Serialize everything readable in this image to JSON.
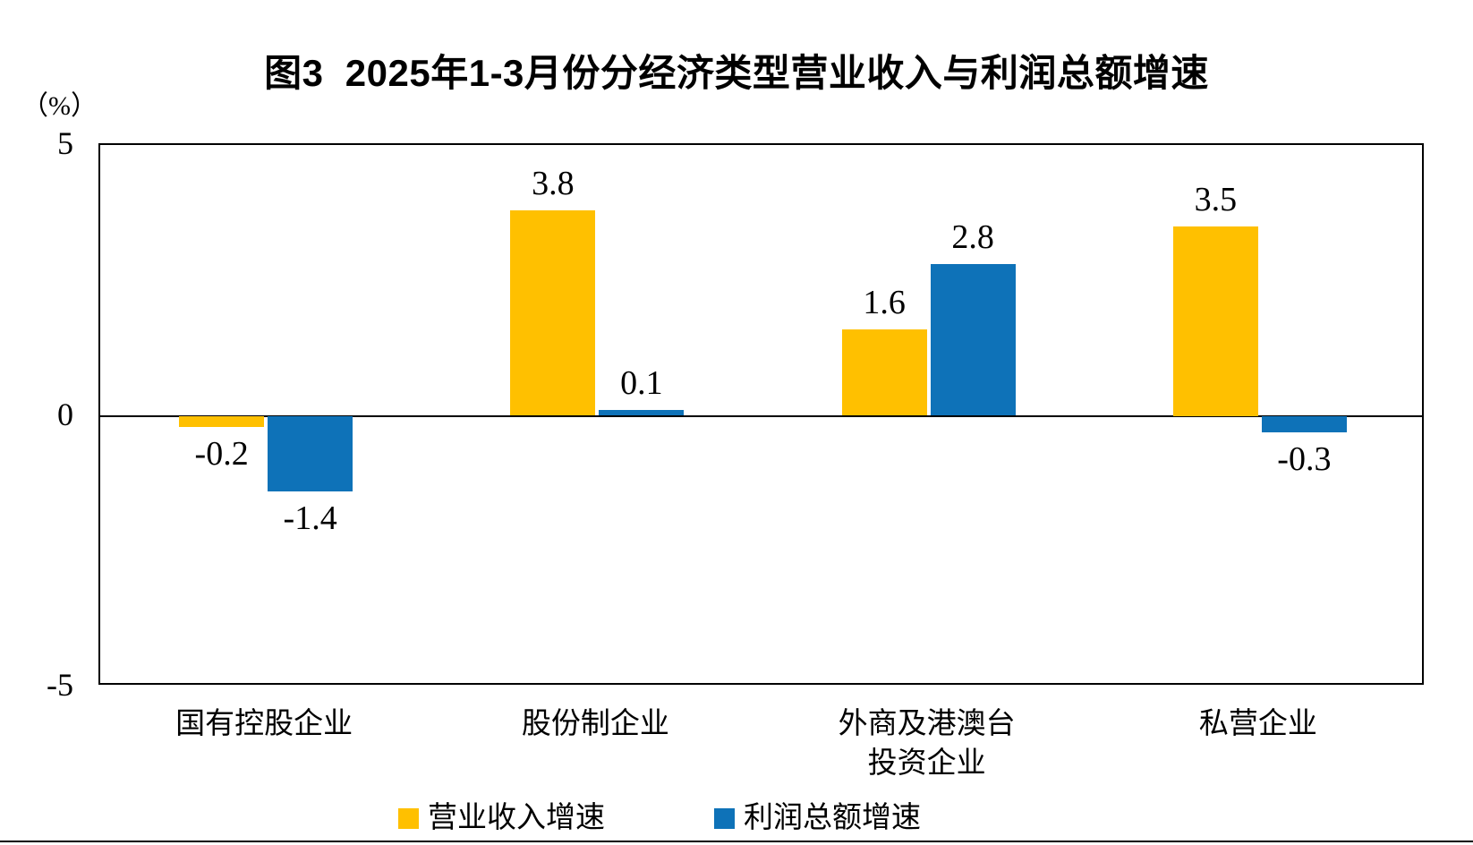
{
  "chart_data": {
    "type": "bar",
    "title": "图3  2025年1-3月份分经济类型营业收入与利润总额增速",
    "unit_label": "（%）",
    "categories": [
      "国有控股企业",
      "股份制企业",
      "外商及港澳台\n投资企业",
      "私营企业"
    ],
    "series": [
      {
        "name": "营业收入增速",
        "color": "#FFC000",
        "values": [
          -0.2,
          3.8,
          1.6,
          3.5
        ]
      },
      {
        "name": "利润总额增速",
        "color": "#0E72B8",
        "values": [
          -1.4,
          0.1,
          2.8,
          -0.3
        ]
      }
    ],
    "data_labels": [
      [
        "-0.2",
        "3.8",
        "1.6",
        "3.5"
      ],
      [
        "-1.4",
        "0.1",
        "2.8",
        "-0.3"
      ]
    ],
    "ylim": [
      -5,
      5
    ],
    "yticks": [
      "5",
      "0",
      "-5"
    ],
    "ytick_values": [
      5,
      0,
      -5
    ],
    "grid": false,
    "legend_position": "bottom",
    "axis_color": "#000000",
    "background_color": "#FFFFFF"
  }
}
